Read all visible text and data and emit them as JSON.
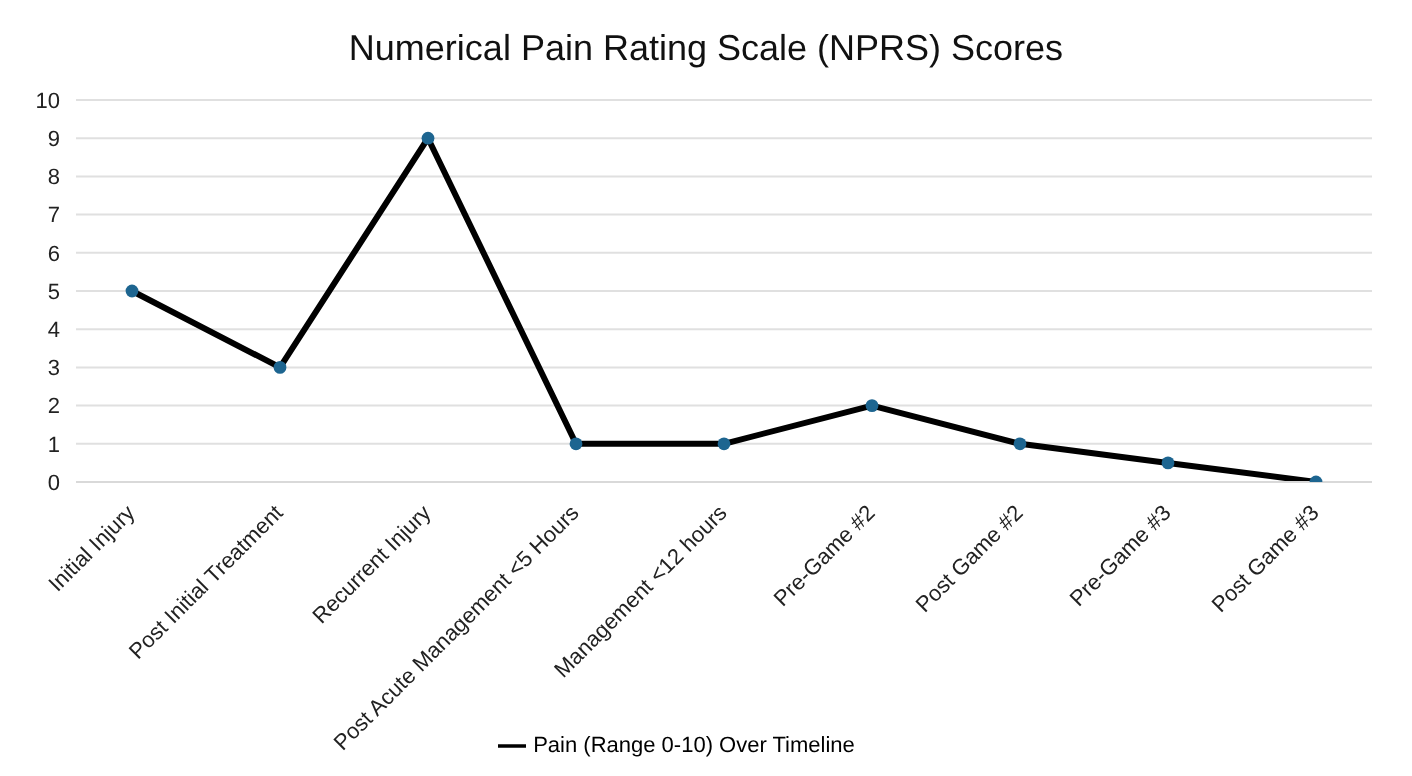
{
  "chart_data": {
    "type": "line",
    "title": "Numerical Pain Rating Scale (NPRS) Scores",
    "categories": [
      "Initial Injury",
      "Post Initial Treatment",
      "Recurrent Injury",
      "Post Acute Management <5 Hours",
      "Management <12 hours",
      "Pre-Game #2",
      "Post Game #2",
      "Pre-Game #3",
      "Post Game #3"
    ],
    "series": [
      {
        "name": "Pain (Range 0-10) Over Timeline",
        "color": "#000000",
        "values": [
          5,
          3,
          9,
          1,
          1,
          2,
          1,
          0.5,
          0
        ]
      }
    ],
    "ylim": [
      0,
      10
    ],
    "yticks": [
      0,
      1,
      2,
      3,
      4,
      5,
      6,
      7,
      8,
      9,
      10
    ],
    "grid": "y",
    "legend": "bottom",
    "marker": "circle",
    "line_style": "solid"
  }
}
